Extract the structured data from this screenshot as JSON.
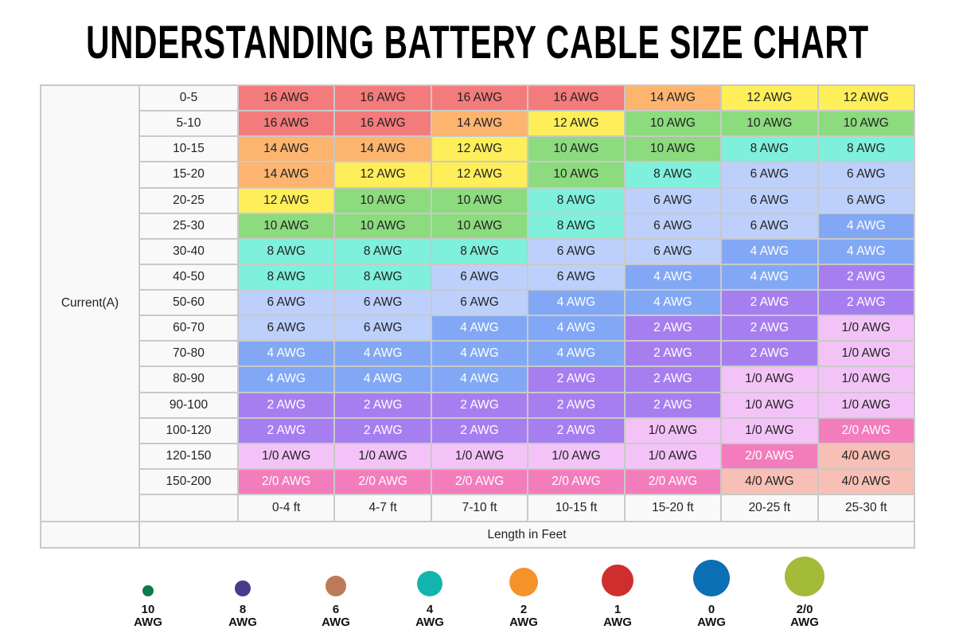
{
  "chart_data": {
    "type": "table",
    "title": "UNDERSTANDING BATTERY CABLE SIZE CHART",
    "row_axis_label": "Current(A)",
    "column_axis_label": "Length in Feet",
    "rows": [
      "0-5",
      "5-10",
      "10-15",
      "15-20",
      "20-25",
      "25-30",
      "30-40",
      "40-50",
      "50-60",
      "60-70",
      "70-80",
      "80-90",
      "90-100",
      "100-120",
      "120-150",
      "150-200"
    ],
    "columns": [
      "0-4 ft",
      "4-7 ft",
      "7-10 ft",
      "10-15 ft",
      "15-20 ft",
      "20-25 ft",
      "25-30 ft"
    ],
    "cells": [
      [
        "16 AWG",
        "16 AWG",
        "16 AWG",
        "16 AWG",
        "14 AWG",
        "12 AWG",
        "12 AWG"
      ],
      [
        "16 AWG",
        "16 AWG",
        "14 AWG",
        "12 AWG",
        "10 AWG",
        "10 AWG",
        "10 AWG"
      ],
      [
        "14 AWG",
        "14 AWG",
        "12 AWG",
        "10 AWG",
        "10 AWG",
        "8 AWG",
        "8 AWG"
      ],
      [
        "14 AWG",
        "12 AWG",
        "12 AWG",
        "10 AWG",
        "8 AWG",
        "6 AWG",
        "6 AWG"
      ],
      [
        "12 AWG",
        "10 AWG",
        "10 AWG",
        "8 AWG",
        "6 AWG",
        "6 AWG",
        "6 AWG"
      ],
      [
        "10 AWG",
        "10 AWG",
        "10 AWG",
        "8 AWG",
        "6 AWG",
        "6 AWG",
        "4 AWG"
      ],
      [
        "8 AWG",
        "8 AWG",
        "8 AWG",
        "6 AWG",
        "6 AWG",
        "4 AWG",
        "4 AWG"
      ],
      [
        "8 AWG",
        "8 AWG",
        "6 AWG",
        "6 AWG",
        "4 AWG",
        "4 AWG",
        "2 AWG"
      ],
      [
        "6 AWG",
        "6 AWG",
        "6 AWG",
        "4 AWG",
        "4 AWG",
        "2 AWG",
        "2 AWG"
      ],
      [
        "6 AWG",
        "6 AWG",
        "4 AWG",
        "4 AWG",
        "2 AWG",
        "2 AWG",
        "1/0 AWG"
      ],
      [
        "4 AWG",
        "4 AWG",
        "4 AWG",
        "4 AWG",
        "2 AWG",
        "2 AWG",
        "1/0 AWG"
      ],
      [
        "4 AWG",
        "4 AWG",
        "4 AWG",
        "2 AWG",
        "2 AWG",
        "1/0 AWG",
        "1/0 AWG"
      ],
      [
        "2 AWG",
        "2 AWG",
        "2 AWG",
        "2 AWG",
        "2 AWG",
        "1/0 AWG",
        "1/0 AWG"
      ],
      [
        "2 AWG",
        "2 AWG",
        "2 AWG",
        "2 AWG",
        "1/0 AWG",
        "1/0 AWG",
        "2/0 AWG"
      ],
      [
        "1/0 AWG",
        "1/0 AWG",
        "1/0 AWG",
        "1/0 AWG",
        "1/0 AWG",
        "2/0 AWG",
        "4/0 AWG"
      ],
      [
        "2/0 AWG",
        "2/0 AWG",
        "2/0 AWG",
        "2/0 AWG",
        "2/0 AWG",
        "4/0 AWG",
        "4/0 AWG"
      ]
    ],
    "cell_colors": {
      "16 AWG": "#f47b7b",
      "14 AWG": "#fdb46f",
      "12 AWG": "#fdee5a",
      "10 AWG": "#8cdb7e",
      "8 AWG": "#7ff0dc",
      "6 AWG": "#bdd0fb",
      "4 AWG": "#82a8f5",
      "2 AWG": "#a77ef0",
      "1/0 AWG": "#f3c3f7",
      "2/0 AWG": "#f37cbc",
      "4/0 AWG": "#f7bfb5"
    },
    "white_text": [
      "4 AWG",
      "2 AWG",
      "2/0 AWG"
    ],
    "legend": [
      {
        "gauge": "10",
        "unit": "AWG",
        "color": "#0e7a4a"
      },
      {
        "gauge": "8",
        "unit": "AWG",
        "color": "#4a3a8c"
      },
      {
        "gauge": "6",
        "unit": "AWG",
        "color": "#bd7a58"
      },
      {
        "gauge": "4",
        "unit": "AWG",
        "color": "#12b5ae"
      },
      {
        "gauge": "2",
        "unit": "AWG",
        "color": "#f5922a"
      },
      {
        "gauge": "1",
        "unit": "AWG",
        "color": "#cf2f2c"
      },
      {
        "gauge": "0",
        "unit": "AWG",
        "color": "#0a70b3"
      },
      {
        "gauge": "2/0",
        "unit": "AWG",
        "color": "#a3bb38"
      }
    ]
  }
}
